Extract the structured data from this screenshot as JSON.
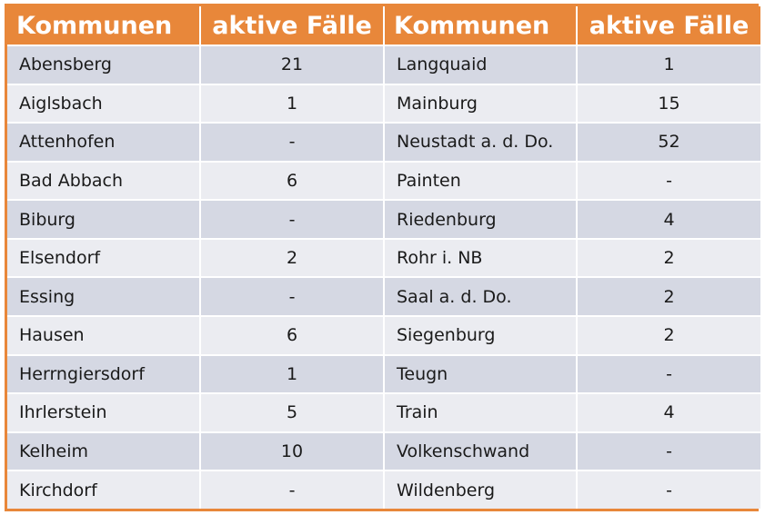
{
  "header": {
    "col1": "Kommunen",
    "col2": "aktive Fälle",
    "col3": "Kommunen",
    "col4": "aktive Fälle"
  },
  "rows": [
    {
      "left_name": "Abensberg",
      "left_value": "21",
      "right_name": "Langquaid",
      "right_value": "1"
    },
    {
      "left_name": "Aiglsbach",
      "left_value": "1",
      "right_name": "Mainburg",
      "right_value": "15"
    },
    {
      "left_name": "Attenhofen",
      "left_value": "-",
      "right_name": "Neustadt a. d. Do.",
      "right_value": "52"
    },
    {
      "left_name": "Bad Abbach",
      "left_value": "6",
      "right_name": "Painten",
      "right_value": "-"
    },
    {
      "left_name": "Biburg",
      "left_value": "-",
      "right_name": "Riedenburg",
      "right_value": "4"
    },
    {
      "left_name": "Elsendorf",
      "left_value": "2",
      "right_name": "Rohr i. NB",
      "right_value": "2"
    },
    {
      "left_name": "Essing",
      "left_value": "-",
      "right_name": "Saal a. d. Do.",
      "right_value": "2"
    },
    {
      "left_name": "Hausen",
      "left_value": "6",
      "right_name": "Siegenburg",
      "right_value": "2"
    },
    {
      "left_name": "Herrngiersdorf",
      "left_value": "1",
      "right_name": "Teugn",
      "right_value": "-"
    },
    {
      "left_name": "Ihrlerstein",
      "left_value": "5",
      "right_name": "Train",
      "right_value": "4"
    },
    {
      "left_name": "Kelheim",
      "left_value": "10",
      "right_name": "Volkenschwand",
      "right_value": "-"
    },
    {
      "left_name": "Kirchdorf",
      "left_value": "-",
      "right_name": "Wildenberg",
      "right_value": "-"
    }
  ],
  "colors": {
    "header_bg": "#e8873a",
    "row_dark": "#d5d8e3",
    "row_light": "#ebecf1"
  }
}
